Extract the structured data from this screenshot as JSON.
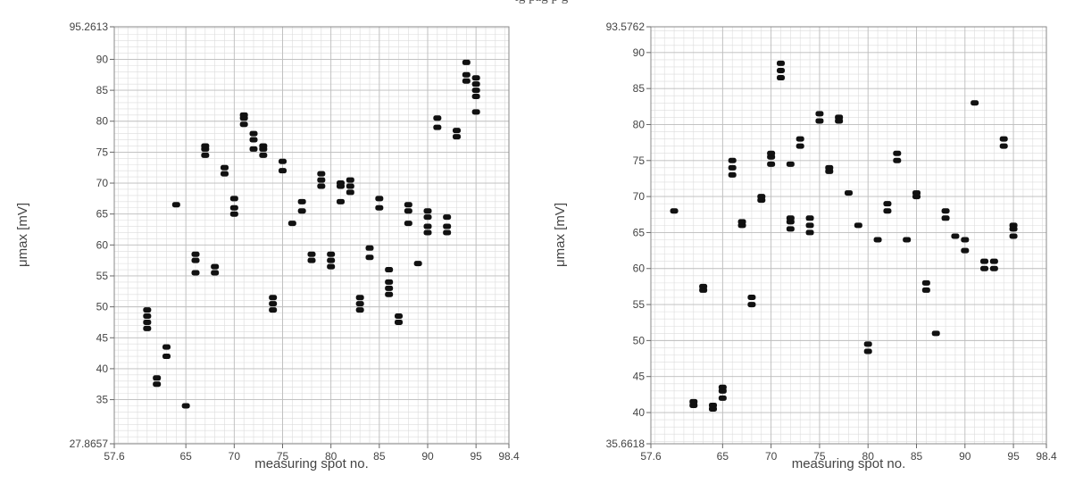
{
  "caption": "ig                                   pag p                   g",
  "chart_data": [
    {
      "type": "scatter",
      "title": "",
      "xlabel": "measuring spot no.",
      "ylabel": "μmax [mV]",
      "xlim": [
        57.6,
        98.4
      ],
      "ylim": [
        27.8657,
        95.2613
      ],
      "xtick_labels": [
        "57.6",
        "65",
        "70",
        "75",
        "80",
        "85",
        "90",
        "95",
        "98.4"
      ],
      "xtick_values": [
        57.6,
        65,
        70,
        75,
        80,
        85,
        90,
        95,
        98.4
      ],
      "ytick_labels": [
        "27.8657",
        "35",
        "40",
        "45",
        "50",
        "55",
        "60",
        "65",
        "70",
        "75",
        "80",
        "85",
        "90",
        "95.2613"
      ],
      "ytick_values": [
        27.8657,
        35,
        40,
        45,
        50,
        55,
        60,
        65,
        70,
        75,
        80,
        85,
        90,
        95.2613
      ],
      "grid": true,
      "points": [
        [
          61,
          46.5
        ],
        [
          61,
          47.5
        ],
        [
          61,
          48.5
        ],
        [
          61,
          49.5
        ],
        [
          62,
          37.5
        ],
        [
          62,
          38.5
        ],
        [
          63,
          42
        ],
        [
          63,
          43.5
        ],
        [
          64,
          66.5
        ],
        [
          65,
          34
        ],
        [
          66,
          55.5
        ],
        [
          66,
          57.5
        ],
        [
          66,
          58.5
        ],
        [
          67,
          74.5
        ],
        [
          67,
          75.5
        ],
        [
          67,
          76
        ],
        [
          68,
          55.5
        ],
        [
          68,
          56.5
        ],
        [
          69,
          71.5
        ],
        [
          69,
          72.5
        ],
        [
          70,
          65
        ],
        [
          70,
          66
        ],
        [
          70,
          67.5
        ],
        [
          71,
          79.5
        ],
        [
          71,
          80.5
        ],
        [
          71,
          81
        ],
        [
          72,
          75.5
        ],
        [
          72,
          77
        ],
        [
          72,
          78
        ],
        [
          73,
          74.5
        ],
        [
          73,
          75.5
        ],
        [
          73,
          76
        ],
        [
          74,
          49.5
        ],
        [
          74,
          50.5
        ],
        [
          74,
          51.5
        ],
        [
          75,
          72
        ],
        [
          75,
          73.5
        ],
        [
          76,
          63.5
        ],
        [
          77,
          65.5
        ],
        [
          77,
          67
        ],
        [
          78,
          57.5
        ],
        [
          78,
          58.5
        ],
        [
          79,
          69.5
        ],
        [
          79,
          70.5
        ],
        [
          79,
          71.5
        ],
        [
          80,
          56.5
        ],
        [
          80,
          57.5
        ],
        [
          80,
          58.5
        ],
        [
          81,
          67
        ],
        [
          81,
          69.5
        ],
        [
          81,
          70
        ],
        [
          82,
          68.5
        ],
        [
          82,
          69.5
        ],
        [
          82,
          70.5
        ],
        [
          83,
          49.5
        ],
        [
          83,
          50.5
        ],
        [
          83,
          51.5
        ],
        [
          84,
          58
        ],
        [
          84,
          59.5
        ],
        [
          85,
          66
        ],
        [
          85,
          67.5
        ],
        [
          86,
          52
        ],
        [
          86,
          53
        ],
        [
          86,
          54
        ],
        [
          86,
          56
        ],
        [
          87,
          47.5
        ],
        [
          87,
          48.5
        ],
        [
          88,
          63.5
        ],
        [
          88,
          65.5
        ],
        [
          88,
          66.5
        ],
        [
          89,
          57
        ],
        [
          90,
          62
        ],
        [
          90,
          63
        ],
        [
          90,
          64.5
        ],
        [
          90,
          65.5
        ],
        [
          91,
          79
        ],
        [
          91,
          80.5
        ],
        [
          92,
          62
        ],
        [
          92,
          63
        ],
        [
          92,
          64.5
        ],
        [
          93,
          77.5
        ],
        [
          93,
          78.5
        ],
        [
          94,
          86.5
        ],
        [
          94,
          87.5
        ],
        [
          94,
          89.5
        ],
        [
          95,
          81.5
        ],
        [
          95,
          84
        ],
        [
          95,
          85
        ],
        [
          95,
          86
        ],
        [
          95,
          87
        ]
      ]
    },
    {
      "type": "scatter",
      "title": "",
      "xlabel": "measuring spot no.",
      "ylabel": "μmax [mV]",
      "xlim": [
        57.6,
        98.4
      ],
      "ylim": [
        35.6618,
        93.5762
      ],
      "xtick_labels": [
        "57.6",
        "65",
        "70",
        "75",
        "80",
        "85",
        "90",
        "95",
        "98.4"
      ],
      "xtick_values": [
        57.6,
        65,
        70,
        75,
        80,
        85,
        90,
        95,
        98.4
      ],
      "ytick_labels": [
        "35.6618",
        "40",
        "45",
        "50",
        "55",
        "60",
        "65",
        "70",
        "75",
        "80",
        "85",
        "90",
        "93.5762"
      ],
      "ytick_values": [
        35.6618,
        40,
        45,
        50,
        55,
        60,
        65,
        70,
        75,
        80,
        85,
        90,
        93.5762
      ],
      "grid": true,
      "points": [
        [
          60,
          68
        ],
        [
          62,
          41
        ],
        [
          62,
          41.5
        ],
        [
          63,
          57
        ],
        [
          63,
          57.5
        ],
        [
          64,
          40.5
        ],
        [
          64,
          41
        ],
        [
          65,
          42
        ],
        [
          65,
          43
        ],
        [
          65,
          43.5
        ],
        [
          66,
          73
        ],
        [
          66,
          74
        ],
        [
          66,
          75
        ],
        [
          67,
          66
        ],
        [
          67,
          66.5
        ],
        [
          68,
          55
        ],
        [
          68,
          56
        ],
        [
          69,
          69.5
        ],
        [
          69,
          70
        ],
        [
          70,
          74.5
        ],
        [
          70,
          75.5
        ],
        [
          70,
          76
        ],
        [
          71,
          86.5
        ],
        [
          71,
          87.5
        ],
        [
          71,
          88.5
        ],
        [
          72,
          65.5
        ],
        [
          72,
          66.5
        ],
        [
          72,
          67
        ],
        [
          72,
          74.5
        ],
        [
          73,
          77
        ],
        [
          73,
          78
        ],
        [
          74,
          65
        ],
        [
          74,
          66
        ],
        [
          74,
          67
        ],
        [
          75,
          80.5
        ],
        [
          75,
          81.5
        ],
        [
          76,
          73.5
        ],
        [
          76,
          74
        ],
        [
          77,
          80.5
        ],
        [
          77,
          81
        ],
        [
          78,
          70.5
        ],
        [
          79,
          66
        ],
        [
          80,
          48.5
        ],
        [
          80,
          49.5
        ],
        [
          81,
          64
        ],
        [
          82,
          68
        ],
        [
          82,
          69
        ],
        [
          83,
          75
        ],
        [
          83,
          76
        ],
        [
          84,
          64
        ],
        [
          85,
          70
        ],
        [
          85,
          70.5
        ],
        [
          86,
          57
        ],
        [
          86,
          58
        ],
        [
          87,
          51
        ],
        [
          88,
          67
        ],
        [
          88,
          68
        ],
        [
          89,
          64.5
        ],
        [
          90,
          62.5
        ],
        [
          90,
          64
        ],
        [
          91,
          83
        ],
        [
          92,
          60
        ],
        [
          92,
          61
        ],
        [
          93,
          60
        ],
        [
          93,
          61
        ],
        [
          94,
          77
        ],
        [
          94,
          78
        ],
        [
          95,
          64.5
        ],
        [
          95,
          65.5
        ],
        [
          95,
          66
        ]
      ]
    }
  ]
}
